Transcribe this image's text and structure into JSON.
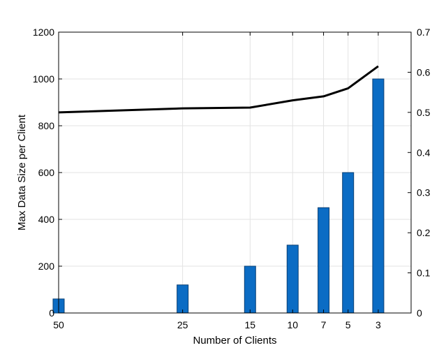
{
  "chart_data": {
    "type": "bar",
    "title": "",
    "xlabel": "Number of Clients",
    "ylabel": "Max Data Size per Client",
    "y2label": "",
    "categories": [
      "50",
      "25",
      "15",
      "10",
      "7",
      "5",
      "3"
    ],
    "x": [
      50,
      25,
      15,
      10,
      7,
      5,
      3
    ],
    "x_scale": "reversed-sqrt",
    "xlim": [
      50,
      1.4
    ],
    "series": [
      {
        "kind": "bar",
        "axis": "left",
        "values": [
          60,
          120,
          200,
          290,
          450,
          600,
          1000
        ],
        "color": "#0b6cc4"
      },
      {
        "kind": "line",
        "axis": "right",
        "x": [
          50,
          25,
          15,
          10,
          7,
          5,
          3
        ],
        "values": [
          0.5,
          0.51,
          0.512,
          0.53,
          0.54,
          0.56,
          0.615
        ],
        "color": "#000000"
      }
    ],
    "ylim": [
      0,
      1200
    ],
    "y_ticks": [
      0,
      200,
      400,
      600,
      800,
      1000,
      1200
    ],
    "y2lim": [
      0,
      0.7
    ],
    "y2_ticks": [
      "0",
      "0.1",
      "0.2",
      "0.3",
      "0.4",
      "0.5",
      "0.6",
      "0.7"
    ],
    "grid": true,
    "legend": "none"
  }
}
